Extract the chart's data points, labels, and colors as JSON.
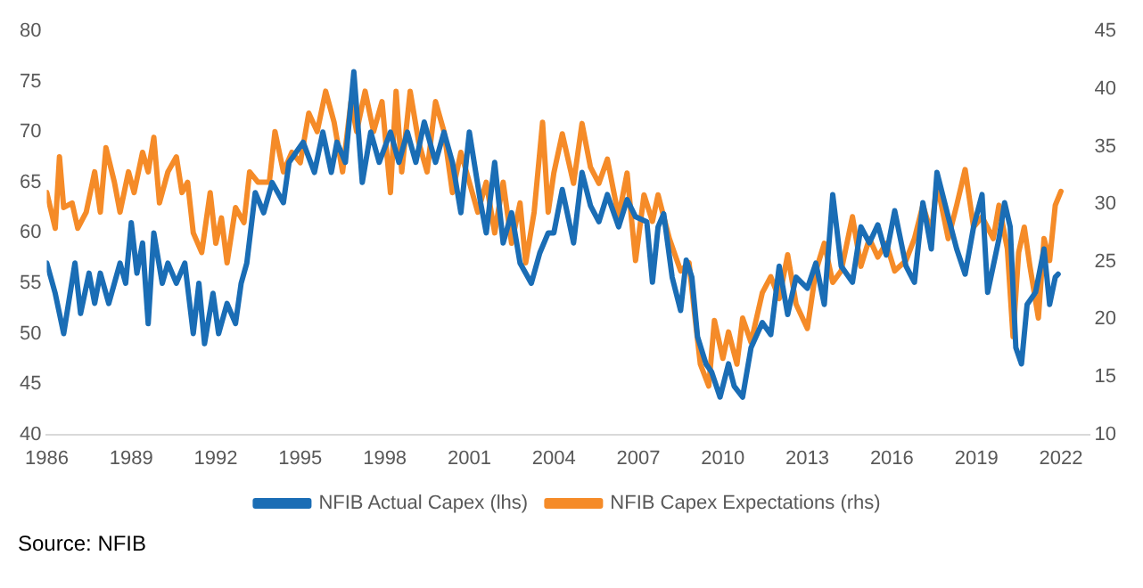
{
  "chart_data": {
    "type": "line",
    "xlim": [
      1986,
      2023
    ],
    "xticks": [
      1986,
      1989,
      1992,
      1995,
      1998,
      2001,
      2004,
      2007,
      2010,
      2013,
      2016,
      2019,
      2022
    ],
    "ylim": [
      40,
      80
    ],
    "yticks": [
      40,
      45,
      50,
      55,
      60,
      65,
      70,
      75,
      80
    ],
    "y2lim": [
      10,
      45
    ],
    "y2ticks": [
      10,
      15,
      20,
      25,
      30,
      35,
      40,
      45
    ],
    "grid": false,
    "legend": "bottom",
    "line_style": "solid",
    "marker": "none",
    "annotations": [
      "Source: NFIB"
    ],
    "series": [
      {
        "name": "NFIB Actual Capex (lhs)",
        "color": "#1a6db5",
        "x": [
          1986.0,
          1986.3,
          1986.6,
          1987.0,
          1987.2,
          1987.5,
          1987.7,
          1987.9,
          1988.2,
          1988.6,
          1988.8,
          1989.0,
          1989.2,
          1989.4,
          1989.6,
          1989.8,
          1990.1,
          1990.3,
          1990.6,
          1990.9,
          1991.2,
          1991.4,
          1991.6,
          1991.9,
          1992.1,
          1992.4,
          1992.7,
          1992.9,
          1993.1,
          1993.4,
          1993.7,
          1994.0,
          1994.4,
          1994.6,
          1995.1,
          1995.5,
          1995.8,
          1996.1,
          1996.3,
          1996.6,
          1996.9,
          1997.2,
          1997.5,
          1997.8,
          1998.2,
          1998.5,
          1998.8,
          1999.1,
          1999.4,
          1999.8,
          2000.1,
          2000.4,
          2000.7,
          2001.0,
          2001.4,
          2001.6,
          2001.9,
          2002.2,
          2002.5,
          2002.8,
          2003.2,
          2003.5,
          2003.8,
          2004.0,
          2004.3,
          2004.7,
          2005.0,
          2005.3,
          2005.6,
          2005.9,
          2006.3,
          2006.6,
          2006.9,
          2007.3,
          2007.5,
          2007.7,
          2007.9,
          2008.2,
          2008.5,
          2008.7,
          2008.9,
          2009.1,
          2009.4,
          2009.6,
          2009.9,
          2010.2,
          2010.4,
          2010.7,
          2011.0,
          2011.4,
          2011.7,
          2012.0,
          2012.3,
          2012.6,
          2013.0,
          2013.3,
          2013.6,
          2013.9,
          2014.2,
          2014.6,
          2014.9,
          2015.2,
          2015.5,
          2015.8,
          2016.1,
          2016.5,
          2016.8,
          2017.1,
          2017.4,
          2017.6,
          2018.0,
          2018.3,
          2018.6,
          2018.9,
          2019.2,
          2019.4,
          2019.8,
          2020.0,
          2020.2,
          2020.4,
          2020.6,
          2020.8,
          2021.1,
          2021.4,
          2021.6,
          2021.8,
          2021.9
        ],
        "values": [
          57,
          54,
          50,
          57,
          52,
          56,
          53,
          56,
          53,
          57,
          55,
          61,
          56,
          59,
          51,
          60,
          55,
          57,
          55,
          57,
          50,
          55,
          49,
          54,
          50,
          53,
          51,
          55,
          57,
          64,
          62,
          65,
          63,
          67,
          69,
          66,
          70,
          66,
          69,
          67,
          76,
          65,
          70,
          67,
          70,
          67,
          70,
          67,
          71,
          67,
          70,
          67,
          62,
          70,
          63,
          60,
          67,
          59,
          62,
          57,
          55,
          58,
          60,
          60,
          64.3,
          59,
          66,
          62.7,
          61.1,
          63.8,
          60.6,
          63.3,
          61.6,
          61.1,
          55.1,
          60.6,
          61.9,
          55.6,
          52.3,
          57.3,
          55.6,
          49.7,
          47,
          46.2,
          43.7,
          47,
          44.8,
          43.7,
          48.6,
          51.1,
          49.9,
          56.7,
          51.9,
          55.6,
          54.5,
          57,
          52.9,
          63.8,
          56.7,
          55.1,
          60.6,
          59,
          60.8,
          57.8,
          62.2,
          56.7,
          55.1,
          63,
          58.4,
          66,
          61.6,
          58.4,
          55.9,
          60.6,
          63.8,
          54.1,
          59.4,
          63,
          60.6,
          48.6,
          47,
          52.9,
          54.1,
          58.4,
          52.9,
          55.6,
          55.9
        ]
      },
      {
        "name": "NFIB Capex Expectations (rhs)",
        "color": "#f58b28",
        "axis": "y2",
        "x": [
          1986.0,
          1986.3,
          1986.45,
          1986.6,
          1986.9,
          1987.1,
          1987.4,
          1987.7,
          1987.9,
          1988.1,
          1988.4,
          1988.6,
          1988.9,
          1989.1,
          1989.4,
          1989.6,
          1989.8,
          1990.0,
          1990.3,
          1990.6,
          1990.8,
          1991.0,
          1991.2,
          1991.5,
          1991.8,
          1992.0,
          1992.2,
          1992.4,
          1992.7,
          1993.0,
          1993.2,
          1993.5,
          1993.9,
          1994.1,
          1994.4,
          1994.7,
          1995.0,
          1995.3,
          1995.6,
          1995.9,
          1996.2,
          1996.5,
          1996.8,
          1997.0,
          1997.3,
          1997.6,
          1997.9,
          1998.2,
          1998.4,
          1998.6,
          1998.9,
          1999.2,
          1999.5,
          1999.8,
          2000.1,
          2000.4,
          2000.7,
          2001.0,
          2001.3,
          2001.6,
          2001.9,
          2002.2,
          2002.5,
          2002.8,
          2003.0,
          2003.3,
          2003.6,
          2003.8,
          2004.0,
          2004.3,
          2004.7,
          2005.0,
          2005.3,
          2005.6,
          2005.9,
          2006.3,
          2006.6,
          2006.9,
          2007.2,
          2007.5,
          2007.7,
          2008.1,
          2008.5,
          2008.8,
          2009.0,
          2009.2,
          2009.5,
          2009.7,
          2010.0,
          2010.2,
          2010.5,
          2010.7,
          2011.0,
          2011.4,
          2011.7,
          2012.0,
          2012.3,
          2012.6,
          2013.0,
          2013.3,
          2013.6,
          2013.9,
          2014.2,
          2014.6,
          2014.9,
          2015.2,
          2015.5,
          2015.8,
          2016.1,
          2016.5,
          2016.8,
          2017.1,
          2017.4,
          2017.6,
          2018.0,
          2018.3,
          2018.6,
          2018.9,
          2019.2,
          2019.6,
          2019.8,
          2020.1,
          2020.3,
          2020.5,
          2020.7,
          2020.9,
          2021.2,
          2021.4,
          2021.6,
          2021.8,
          2022.0
        ],
        "values": [
          31,
          27.9,
          34.1,
          29.7,
          30.1,
          27.9,
          29.3,
          32.8,
          29.3,
          34.9,
          31.9,
          29.3,
          32.8,
          31,
          34.5,
          32.8,
          35.8,
          30.1,
          32.8,
          34.1,
          31,
          31.9,
          27.5,
          25.8,
          31,
          26.6,
          28.8,
          24.9,
          29.7,
          28.4,
          32.8,
          31.9,
          31.9,
          36.3,
          32.8,
          34.5,
          33.6,
          37.9,
          36.3,
          39.8,
          37.1,
          32.8,
          38.9,
          36.3,
          39.8,
          36.3,
          38.9,
          31,
          39.8,
          32.8,
          39.8,
          35.4,
          32.8,
          38.9,
          36.3,
          31,
          34.5,
          31.9,
          29.3,
          31.9,
          27.5,
          31.9,
          26.6,
          30.1,
          24.9,
          29.3,
          37.1,
          29.3,
          32.7,
          36.1,
          31.8,
          37,
          33.2,
          31.8,
          33.9,
          28.9,
          32.7,
          25.1,
          30.8,
          28.5,
          30.8,
          27,
          24.2,
          24.9,
          20.4,
          16.1,
          14.2,
          19.9,
          16.6,
          18.9,
          16.1,
          20.1,
          18,
          22.3,
          23.7,
          21.8,
          25.6,
          21.3,
          19.2,
          24.2,
          26.6,
          23.2,
          24.2,
          28.9,
          24.6,
          27,
          25.4,
          26.6,
          24.2,
          25.1,
          27,
          29.9,
          27.5,
          31.8,
          27,
          29.9,
          33,
          28,
          28.9,
          27,
          29.9,
          26.1,
          18.5,
          25.8,
          28,
          24.6,
          20.1,
          27,
          25.1,
          29.9,
          31.1
        ]
      }
    ]
  }
}
